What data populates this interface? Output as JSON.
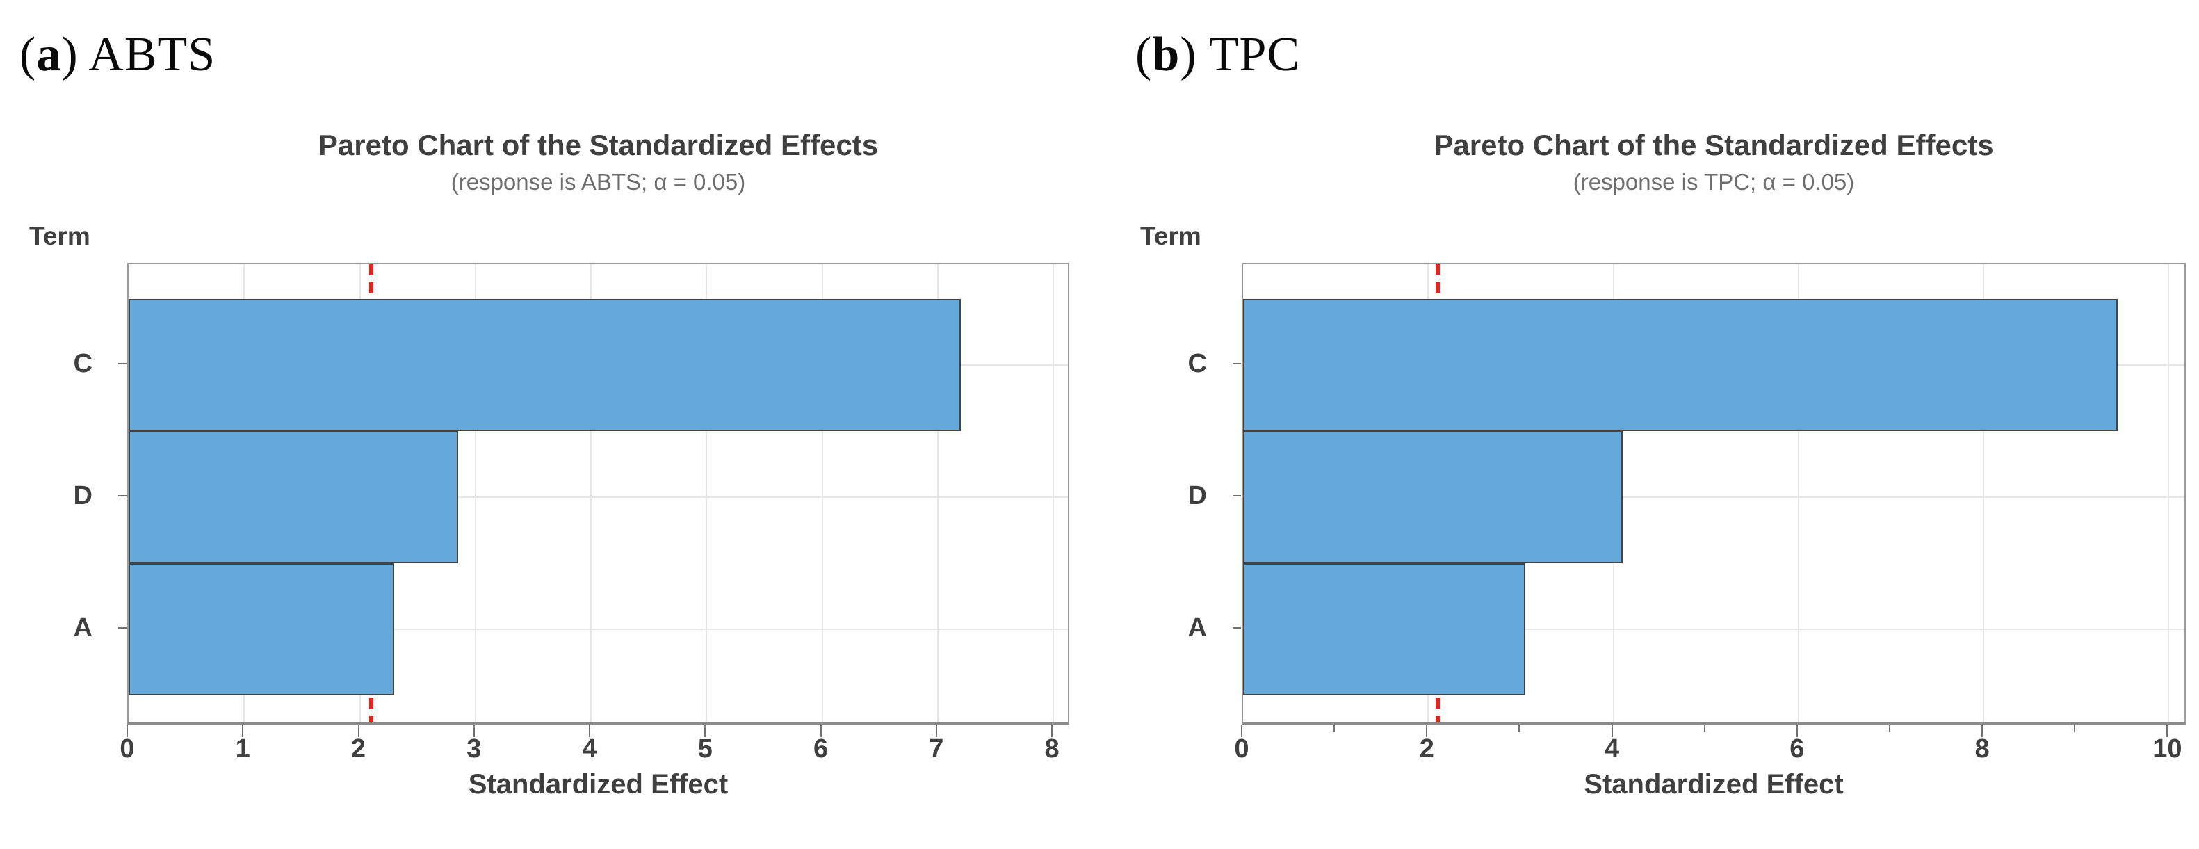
{
  "page": {
    "background": "#ffffff"
  },
  "colors": {
    "bar_fill": "#65a8dc",
    "bar_border": "#3f4345",
    "reference_line": "#e8211d",
    "gridline": "#e6e6e6",
    "frame": "#9a9a9a",
    "frame_dark": "#8a8a8a",
    "tick": "#6f6f6f",
    "text": "#3f3f3f",
    "subtitle_text": "#6e6e6e"
  },
  "chart_data": [
    {
      "type": "bar",
      "orientation": "horizontal",
      "panel_label": {
        "prefix": "(",
        "letter": "a",
        "rest": ") ABTS"
      },
      "title": "Pareto Chart of the Standardized Effects",
      "subtitle": "(response is ABTS; α = 0.05)",
      "ylabel": "Term",
      "xlabel": "Standardized Effect",
      "categories": [
        "C",
        "D",
        "A"
      ],
      "values": [
        7.2,
        2.85,
        2.3
      ],
      "reference_line": 2.1,
      "xlim": [
        0,
        8.15
      ],
      "xticks_major": [
        0,
        1,
        2,
        3,
        4,
        5,
        6,
        7,
        8
      ],
      "xticks_minor": [],
      "grid": true,
      "legend": false
    },
    {
      "type": "bar",
      "orientation": "horizontal",
      "panel_label": {
        "prefix": "(",
        "letter": "b",
        "rest": ") TPC"
      },
      "title": "Pareto Chart of the Standardized Effects",
      "subtitle": "(response is TPC; α = 0.05)",
      "ylabel": "Term",
      "xlabel": "Standardized Effect",
      "categories": [
        "C",
        "D",
        "A"
      ],
      "values": [
        9.45,
        4.1,
        3.05
      ],
      "reference_line": 2.1,
      "xlim": [
        0,
        10.2
      ],
      "xticks_major": [
        0,
        2,
        4,
        6,
        8,
        10
      ],
      "xticks_minor": [
        1,
        3,
        5,
        7,
        9
      ],
      "grid": true,
      "legend": false
    }
  ]
}
